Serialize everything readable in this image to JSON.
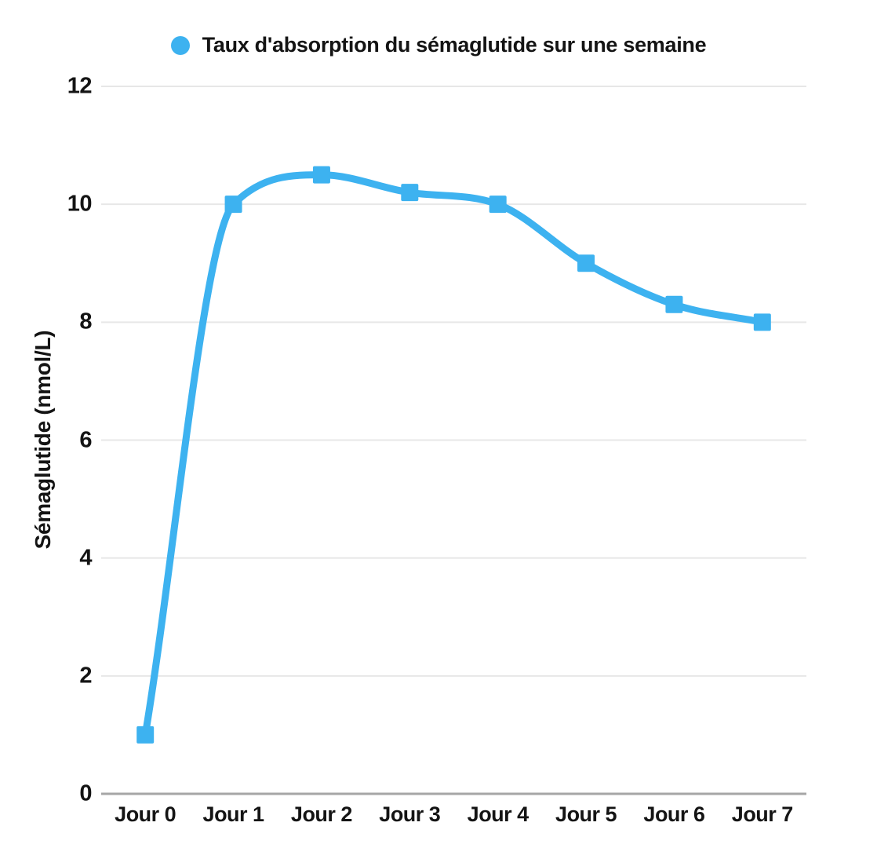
{
  "chart_data": {
    "type": "line",
    "title": "Taux d'absorption du sémaglutide sur une semaine",
    "ylabel": "Sémaglutide (nmol/L)",
    "xlabel": "",
    "categories": [
      "Jour 0",
      "Jour 1",
      "Jour 2",
      "Jour 3",
      "Jour 4",
      "Jour 5",
      "Jour 6",
      "Jour 7"
    ],
    "series": [
      {
        "name": "Taux d'absorption du sémaglutide sur une semaine",
        "values": [
          1,
          10,
          10.5,
          10.2,
          10,
          9,
          8.3,
          8
        ]
      }
    ],
    "ylim": [
      0,
      12
    ],
    "ytick_step": 2,
    "yticks": [
      0,
      2,
      4,
      6,
      8,
      10,
      12
    ],
    "grid": true,
    "legend_position": "top",
    "marker_shape": "square",
    "colors": {
      "line": "#3DB2F0",
      "marker": "#3DB2F0",
      "legend_dot": "#3DB2F0",
      "grid": "#E7E7E7",
      "axis": "#A6A6A6",
      "text": "#141414",
      "background": "#FFFFFF"
    }
  }
}
